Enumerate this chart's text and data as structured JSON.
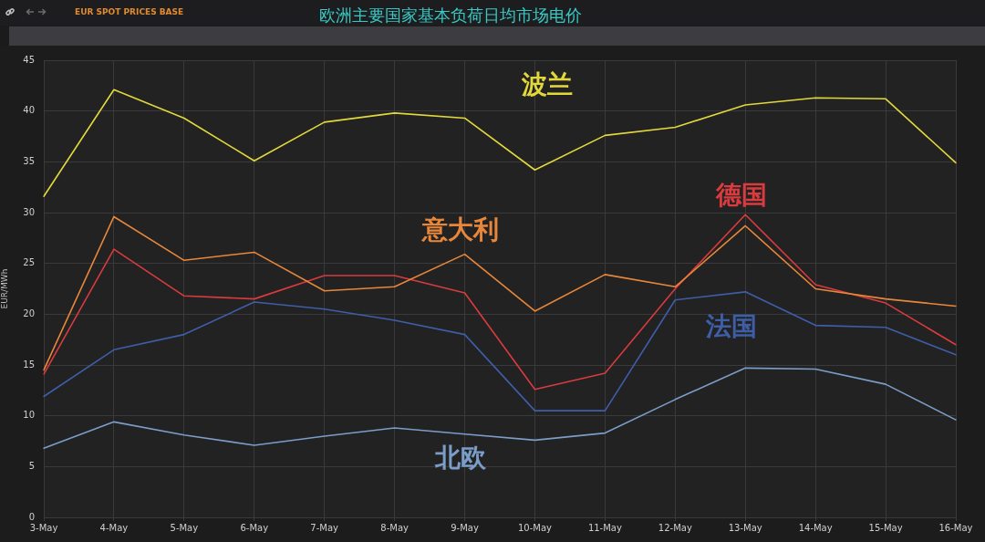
{
  "chart_data": {
    "type": "line",
    "title": "欧洲主要国家基本负荷日均市场电价",
    "subtitle": "EUR SPOT PRICES BASE",
    "ylabel": "EUR/MWh",
    "categories": [
      "3-May",
      "4-May",
      "5-May",
      "6-May",
      "7-May",
      "8-May",
      "9-May",
      "10-May",
      "11-May",
      "12-May",
      "13-May",
      "14-May",
      "15-May",
      "16-May"
    ],
    "series": [
      {
        "name": "波兰",
        "color": "#e2d83c",
        "values": [
          31.6,
          42.1,
          39.3,
          35.1,
          38.9,
          39.8,
          39.3,
          34.2,
          37.6,
          38.4,
          40.6,
          41.3,
          41.2,
          34.9
        ]
      },
      {
        "name": "意大利",
        "color": "#e8873a",
        "values": [
          14.5,
          29.6,
          25.3,
          26.1,
          22.3,
          22.7,
          25.9,
          20.3,
          23.9,
          22.7,
          28.7,
          22.5,
          21.5,
          20.8
        ]
      },
      {
        "name": "德国",
        "color": "#d93b3f",
        "values": [
          14.1,
          26.4,
          21.8,
          21.5,
          23.8,
          23.8,
          22.1,
          12.6,
          14.2,
          22.5,
          29.8,
          22.9,
          21.1,
          17.0
        ]
      },
      {
        "name": "法国",
        "color": "#3f5ea8",
        "values": [
          11.9,
          16.5,
          18.0,
          21.2,
          20.5,
          19.4,
          18.0,
          10.5,
          10.5,
          21.4,
          22.2,
          18.9,
          18.7,
          16.0
        ]
      },
      {
        "name": "北欧",
        "color": "#7b9dc8",
        "values": [
          6.8,
          9.4,
          8.1,
          7.1,
          8.0,
          8.8,
          8.2,
          7.6,
          8.3,
          11.6,
          14.7,
          14.6,
          13.1,
          9.6
        ]
      }
    ],
    "ylim": [
      0,
      45
    ],
    "yticks": [
      0,
      5,
      10,
      15,
      20,
      25,
      30,
      35,
      40,
      45
    ],
    "grid": true
  }
}
